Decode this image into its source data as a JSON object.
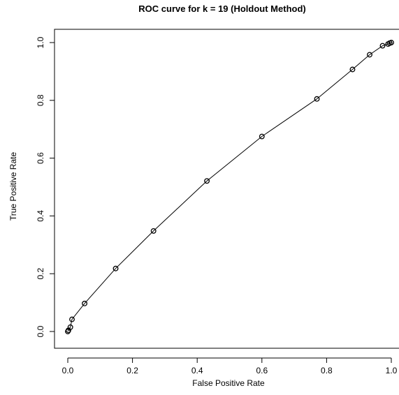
{
  "chart_data": {
    "type": "line",
    "title": "ROC curve for k = 19 (Holdout Method)",
    "xlabel": "False Positive Rate",
    "ylabel": "True Positive Rate",
    "xlim": [
      0,
      1
    ],
    "ylim": [
      0,
      1
    ],
    "xticks": [
      "0.0",
      "0.2",
      "0.4",
      "0.6",
      "0.8",
      "1.0"
    ],
    "yticks": [
      "0.0",
      "0.2",
      "0.4",
      "0.6",
      "0.8",
      "1.0"
    ],
    "grid": false,
    "legend": "none",
    "markers": "open-circle",
    "series": [
      {
        "x": [
          0.0,
          0.002,
          0.008,
          0.013,
          0.052,
          0.148,
          0.265,
          0.43,
          0.6,
          0.77,
          0.88,
          0.933,
          0.973,
          0.99,
          0.995,
          1.0
        ],
        "y": [
          0.0,
          0.004,
          0.015,
          0.042,
          0.097,
          0.218,
          0.348,
          0.521,
          0.675,
          0.805,
          0.907,
          0.958,
          0.989,
          0.995,
          0.998,
          1.0
        ]
      }
    ]
  }
}
